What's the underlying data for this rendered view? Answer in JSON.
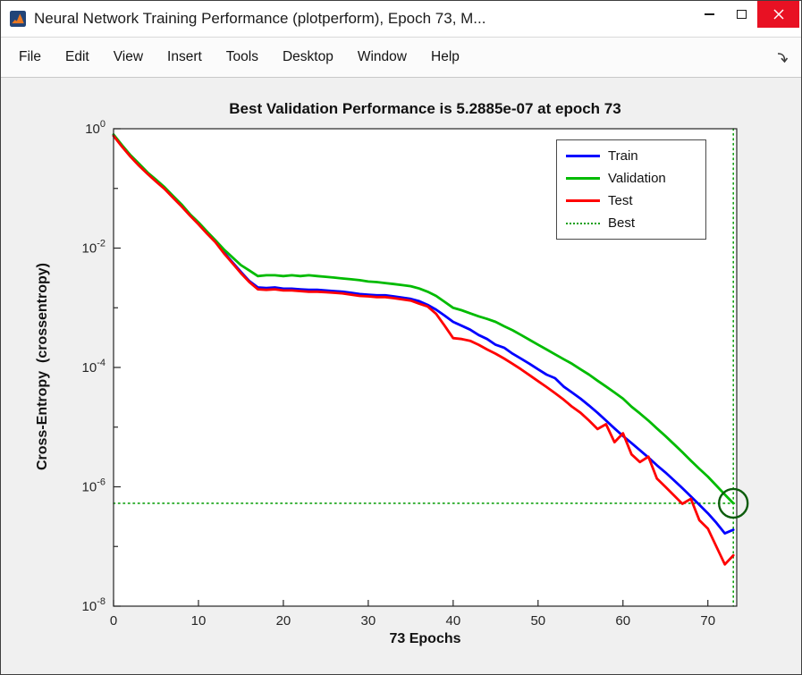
{
  "window": {
    "title": "Neural Network Training Performance (plotperform), Epoch 73, M...",
    "close_button_color": "#e81123",
    "titlebar_bg": "#ffffff",
    "figure_bg": "#f0f0f0"
  },
  "menu": {
    "items": [
      "File",
      "Edit",
      "View",
      "Insert",
      "Tools",
      "Desktop",
      "Window",
      "Help"
    ]
  },
  "chart_data": {
    "type": "line",
    "title": "Best Validation Performance is 5.2885e-07 at epoch 73",
    "xlabel": "73 Epochs",
    "ylabel": "Cross-Entropy  (crossentropy)",
    "x_scale": "linear",
    "y_scale": "log",
    "xlim": [
      0,
      73.4
    ],
    "ylim": [
      1e-08,
      1
    ],
    "x_ticks": [
      0,
      10,
      20,
      30,
      40,
      50,
      60,
      70
    ],
    "y_tick_labels": [
      "10^0",
      "10^-2",
      "10^-4",
      "10^-6",
      "10^-8"
    ],
    "grid": false,
    "legend_position": "top-right",
    "best": {
      "label": "Best",
      "epoch": 73,
      "value": 5.2885e-07,
      "line_color": "#0fa00f",
      "circle_color": "#0c5c0c"
    },
    "legend": [
      {
        "label": "Train",
        "color": "#0000ff",
        "style": "solid"
      },
      {
        "label": "Validation",
        "color": "#00bb00",
        "style": "solid"
      },
      {
        "label": "Test",
        "color": "#ff0000",
        "style": "solid"
      },
      {
        "label": "Best",
        "color": "#0fa00f",
        "style": "dotted"
      }
    ],
    "series": [
      {
        "name": "Train",
        "color": "#0000ff",
        "values": [
          0.79,
          0.52,
          0.35,
          0.25,
          0.18,
          0.135,
          0.1,
          0.072,
          0.052,
          0.036,
          0.026,
          0.018,
          0.013,
          0.0085,
          0.0058,
          0.004,
          0.0028,
          0.00219,
          0.00214,
          0.00219,
          0.00209,
          0.00209,
          0.00204,
          0.002,
          0.002,
          0.00195,
          0.0019,
          0.00186,
          0.00178,
          0.0017,
          0.00166,
          0.00162,
          0.00162,
          0.00155,
          0.00148,
          0.00141,
          0.00129,
          0.00112,
          0.00093,
          0.00074,
          0.00058,
          0.0005,
          0.00043,
          0.00035,
          0.0003,
          0.00024,
          0.000214,
          0.00017,
          0.00014,
          0.000115,
          9.3e-05,
          7.6e-05,
          6.6e-05,
          4.8e-05,
          3.8e-05,
          3e-05,
          2.3e-05,
          1.74e-05,
          1.29e-05,
          9.5e-06,
          7.1e-06,
          5.4e-06,
          4.1e-06,
          3.1e-06,
          2.3e-06,
          1.74e-06,
          1.29e-06,
          9.5e-07,
          6.9e-07,
          5e-07,
          3.6e-07,
          2.5e-07,
          1.66e-07,
          1.9e-07
        ]
      },
      {
        "name": "Validation",
        "color": "#00bb00",
        "values": [
          0.8,
          0.53,
          0.36,
          0.26,
          0.185,
          0.14,
          0.105,
          0.075,
          0.054,
          0.037,
          0.027,
          0.019,
          0.0135,
          0.0095,
          0.007,
          0.0052,
          0.0042,
          0.0034,
          0.0035,
          0.0035,
          0.0034,
          0.0035,
          0.0034,
          0.0035,
          0.0034,
          0.0033,
          0.0032,
          0.0031,
          0.003,
          0.0029,
          0.00275,
          0.0027,
          0.0026,
          0.0025,
          0.0024,
          0.0023,
          0.0021,
          0.00186,
          0.00158,
          0.00126,
          0.001,
          0.00091,
          0.00081,
          0.00072,
          0.00065,
          0.00058,
          0.00049,
          0.00042,
          0.00035,
          0.00029,
          0.00024,
          0.0002,
          0.000166,
          0.000138,
          0.000115,
          9.3e-05,
          7.6e-05,
          6e-05,
          4.8e-05,
          3.8e-05,
          3e-05,
          2.2e-05,
          1.7e-05,
          1.29e-05,
          9.5e-06,
          7.1e-06,
          5.2e-06,
          3.8e-06,
          2.75e-06,
          2e-06,
          1.48e-06,
          1.05e-06,
          7.4e-07,
          5.2885e-07
        ]
      },
      {
        "name": "Test",
        "color": "#ff0000",
        "values": [
          0.76,
          0.5,
          0.34,
          0.24,
          0.175,
          0.13,
          0.098,
          0.07,
          0.05,
          0.035,
          0.025,
          0.0175,
          0.0125,
          0.0082,
          0.0056,
          0.0038,
          0.0027,
          0.00204,
          0.002,
          0.00204,
          0.00195,
          0.00195,
          0.0019,
          0.00186,
          0.00186,
          0.00182,
          0.00178,
          0.00174,
          0.00166,
          0.00158,
          0.00155,
          0.00151,
          0.00151,
          0.00145,
          0.00138,
          0.00132,
          0.00117,
          0.00105,
          0.00079,
          0.0005,
          0.00031,
          0.0003,
          0.00028,
          0.00024,
          0.0002,
          0.00017,
          0.000141,
          0.000115,
          9.3e-05,
          7.4e-05,
          5.9e-05,
          4.7e-05,
          3.7e-05,
          2.9e-05,
          2.2e-05,
          1.74e-05,
          1.29e-05,
          9.3e-06,
          1.12e-05,
          5.6e-06,
          7.9e-06,
          3.5e-06,
          2.6e-06,
          3.2e-06,
          1.38e-06,
          1e-06,
          7.2e-07,
          5.2e-07,
          6.3e-07,
          2.75e-07,
          2e-07,
          1e-07,
          5e-08,
          7.1e-08
        ]
      }
    ]
  }
}
